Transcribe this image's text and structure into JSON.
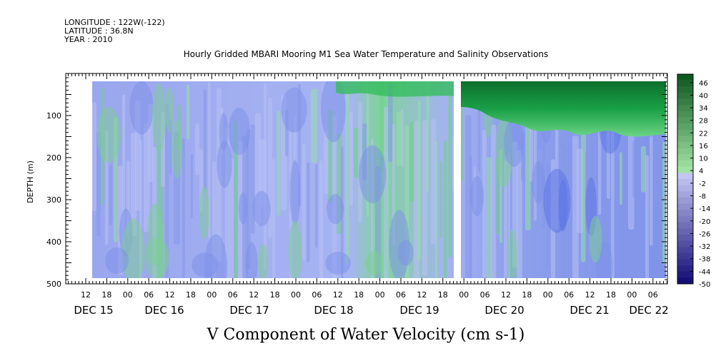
{
  "header": {
    "longitude": "LONGITUDE : 122W(-122)",
    "latitude": "LATITUDE : 36.8N",
    "year": "YEAR : 2010",
    "title": "Hourly Gridded MBARI Mooring M1 Sea Water Temperature and Salinity Observations"
  },
  "footer": {
    "variable": "V Component of Water Velocity (cm s-1)"
  },
  "chart_data": {
    "type": "heatmap",
    "title": "Hourly Gridded MBARI Mooring M1 Sea Water Temperature and Salinity Observations",
    "xlabel": "",
    "ylabel": "DEPTH (m)",
    "colorbar_label": "V Component of Water Velocity (cm s-1)",
    "y_reversed": true,
    "ylim": [
      500,
      0
    ],
    "y_ticks": [
      100,
      200,
      300,
      400,
      500
    ],
    "x_hour_labels": [
      "12",
      "18",
      "00",
      "06",
      "12",
      "18",
      "00",
      "06",
      "12",
      "18",
      "00",
      "06",
      "12",
      "18",
      "00",
      "06",
      "12",
      "18",
      "00",
      "06",
      "12",
      "18",
      "00",
      "06",
      "12",
      "18",
      "00",
      "06"
    ],
    "x_day_labels": [
      "DEC 15",
      "DEC 16",
      "DEC 17",
      "DEC 18",
      "DEC 19",
      "DEC 20",
      "DEC 21",
      "DEC 22"
    ],
    "colorbar_ticks": [
      46,
      40,
      34,
      28,
      22,
      16,
      10,
      4,
      -2,
      -8,
      -14,
      -20,
      -26,
      -32,
      -38,
      -44,
      -50
    ],
    "colorbar_range": [
      -50,
      50
    ],
    "depth_range_m": [
      20,
      485
    ],
    "data_gap": "DEC 19 near 21:00",
    "typical_values": {
      "surface_after_dec20": "+20 to +40 (green)",
      "mid_depth_general": "-10 to -2 (blue-lavender)",
      "deep_dec21_dec22": "-20 to -30 (blue)"
    }
  }
}
